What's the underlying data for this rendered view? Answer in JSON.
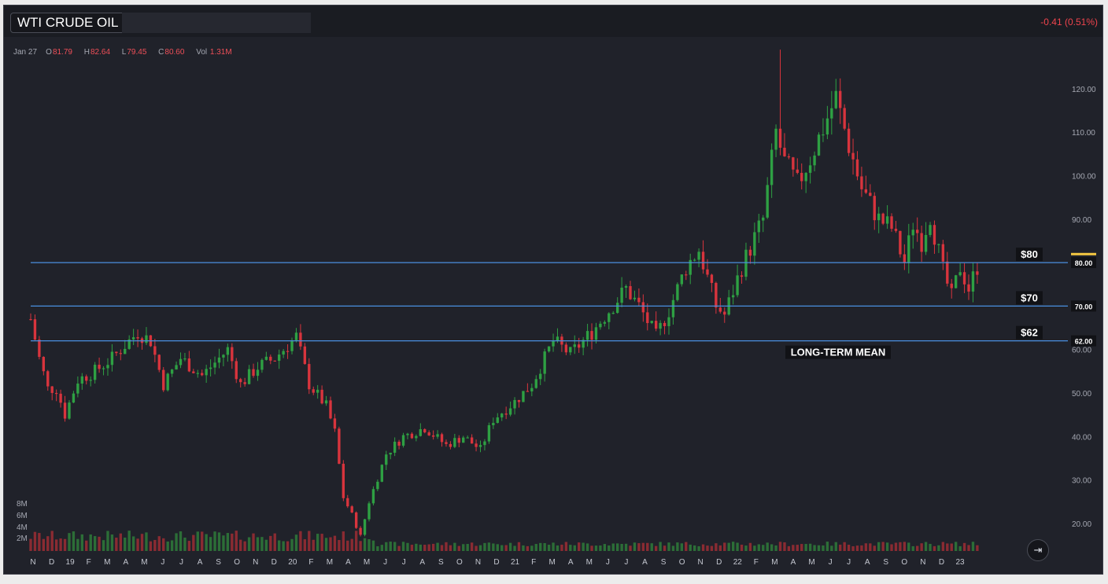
{
  "header": {
    "title": "WTI CRUDE OIL",
    "change": "-0.41 (0.51%)"
  },
  "ohlc": {
    "date": "Jan 27",
    "open_label": "O",
    "open": "81.79",
    "high_label": "H",
    "high": "82.64",
    "low_label": "L",
    "low": "79.45",
    "close_label": "C",
    "close": "80.60",
    "vol_label": "Vol",
    "vol": "1.31M"
  },
  "controls": {
    "exit_icon": "exit-fullscreen-icon",
    "exit_glyph": "⇥"
  },
  "colors": {
    "up": "#2ea043",
    "down": "#d8343d",
    "up_volume": "#2c6e37",
    "down_volume": "#8a2b32",
    "line": "#4a8fe0",
    "last_price": "#f5c842",
    "grid_text": "#a5a8b2",
    "background": "#20222a"
  },
  "chart_data": {
    "type": "candlestick",
    "title": "WTI CRUDE OIL",
    "y_axis": {
      "ticks": [
        "20.00",
        "30.00",
        "40.00",
        "50.00",
        "60.00",
        "70.00",
        "80.00",
        "90.00",
        "100.00",
        "110.00",
        "120.00"
      ],
      "range": [
        14,
        130
      ],
      "position": "right"
    },
    "volume_axis": {
      "ticks": [
        "2M",
        "4M",
        "6M",
        "8M"
      ]
    },
    "x_axis": {
      "ticks": [
        "N",
        "D",
        "19",
        "F",
        "M",
        "A",
        "M",
        "J",
        "J",
        "A",
        "S",
        "O",
        "N",
        "D",
        "20",
        "F",
        "M",
        "A",
        "M",
        "J",
        "J",
        "A",
        "S",
        "O",
        "N",
        "D",
        "21",
        "F",
        "M",
        "A",
        "M",
        "J",
        "J",
        "A",
        "S",
        "O",
        "N",
        "D",
        "22",
        "F",
        "M",
        "A",
        "M",
        "J",
        "J",
        "A",
        "S",
        "O",
        "N",
        "D",
        "23"
      ],
      "start": "2018-11",
      "end": "2023-01-27",
      "frequency": "weekly"
    },
    "price_anchors": [
      [
        "2018-10-29",
        67
      ],
      [
        "2018-11-12",
        58
      ],
      [
        "2018-11-26",
        51
      ],
      [
        "2018-12-10",
        51
      ],
      [
        "2018-12-24",
        45
      ],
      [
        "2019-01-14",
        53
      ],
      [
        "2019-02-11",
        55
      ],
      [
        "2019-03-11",
        58
      ],
      [
        "2019-04-22",
        64
      ],
      [
        "2019-05-13",
        62
      ],
      [
        "2019-06-03",
        52
      ],
      [
        "2019-07-01",
        58
      ],
      [
        "2019-08-05",
        54
      ],
      [
        "2019-09-16",
        60
      ],
      [
        "2019-10-07",
        52
      ],
      [
        "2019-11-04",
        56
      ],
      [
        "2019-12-02",
        58
      ],
      [
        "2020-01-06",
        63
      ],
      [
        "2020-01-27",
        52
      ],
      [
        "2020-02-24",
        47
      ],
      [
        "2020-03-09",
        41
      ],
      [
        "2020-03-23",
        26
      ],
      [
        "2020-04-06",
        22
      ],
      [
        "2020-04-20",
        17
      ],
      [
        "2020-05-04",
        25
      ],
      [
        "2020-06-01",
        36
      ],
      [
        "2020-06-29",
        40
      ],
      [
        "2020-08-03",
        42
      ],
      [
        "2020-09-07",
        38
      ],
      [
        "2020-10-05",
        40
      ],
      [
        "2020-11-02",
        37
      ],
      [
        "2020-11-23",
        44
      ],
      [
        "2020-12-28",
        48
      ],
      [
        "2021-01-25",
        52
      ],
      [
        "2021-03-01",
        62
      ],
      [
        "2021-03-29",
        59
      ],
      [
        "2021-05-03",
        64
      ],
      [
        "2021-06-28",
        74
      ],
      [
        "2021-07-19",
        70
      ],
      [
        "2021-08-16",
        63
      ],
      [
        "2021-09-06",
        69
      ],
      [
        "2021-10-04",
        79
      ],
      [
        "2021-10-25",
        83
      ],
      [
        "2021-11-22",
        70
      ],
      [
        "2021-12-06",
        68
      ],
      [
        "2022-01-03",
        79
      ],
      [
        "2022-02-07",
        90
      ],
      [
        "2022-02-28",
        110
      ],
      [
        "2022-03-14",
        103
      ],
      [
        "2022-04-04",
        98
      ],
      [
        "2022-04-25",
        104
      ],
      [
        "2022-06-06",
        118
      ],
      [
        "2022-06-27",
        107
      ],
      [
        "2022-07-18",
        97
      ],
      [
        "2022-08-15",
        90
      ],
      [
        "2022-09-05",
        88
      ],
      [
        "2022-09-26",
        80
      ],
      [
        "2022-10-10",
        89
      ],
      [
        "2022-10-24",
        85
      ],
      [
        "2022-11-07",
        91
      ],
      [
        "2022-11-28",
        78
      ],
      [
        "2022-12-12",
        72
      ],
      [
        "2022-12-26",
        79
      ],
      [
        "2023-01-09",
        74
      ],
      [
        "2023-01-27",
        80.6
      ]
    ],
    "peak": {
      "date": "2022-03-07",
      "high": 129
    },
    "last_price": 80.6,
    "horizontal_lines": [
      {
        "value": 80,
        "label": "$80",
        "axis_label": "80.00"
      },
      {
        "value": 70,
        "label": "$70",
        "axis_label": "70.00"
      },
      {
        "value": 62,
        "label": "$62",
        "axis_label": "62.00"
      }
    ],
    "annotations": [
      {
        "text": "LONG-TERM MEAN",
        "value": 62
      }
    ],
    "grid": false
  }
}
